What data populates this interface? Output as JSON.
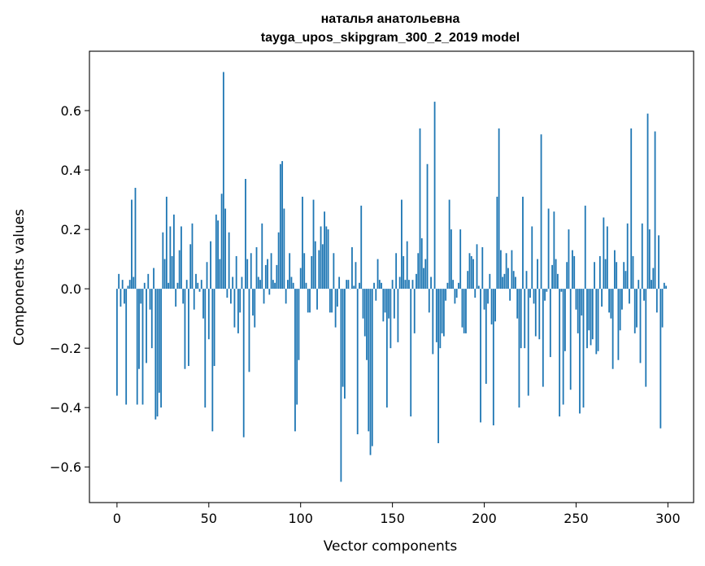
{
  "chart_data": {
    "type": "bar",
    "title_line1": "наталья анатольевна",
    "title_line2": "tayga_upos_skipgram_300_2_2019 model",
    "xlabel": "Vector components",
    "ylabel": "Components values",
    "xlim": [
      -15,
      314
    ],
    "ylim": [
      -0.72,
      0.8
    ],
    "xticks": [
      {
        "value": 0,
        "label": "0"
      },
      {
        "value": 50,
        "label": "50"
      },
      {
        "value": 100,
        "label": "100"
      },
      {
        "value": 150,
        "label": "150"
      },
      {
        "value": 200,
        "label": "200"
      },
      {
        "value": 250,
        "label": "250"
      },
      {
        "value": 300,
        "label": "300"
      }
    ],
    "yticks": [
      {
        "value": -0.6,
        "label": "−0.6"
      },
      {
        "value": -0.4,
        "label": "−0.4"
      },
      {
        "value": -0.2,
        "label": "−0.2"
      },
      {
        "value": 0.0,
        "label": "0.0"
      },
      {
        "value": 0.2,
        "label": "0.2"
      },
      {
        "value": 0.4,
        "label": "0.4"
      },
      {
        "value": 0.6,
        "label": "0.6"
      }
    ],
    "bar_color": "#1f77b4",
    "values": [
      -0.36,
      0.05,
      -0.06,
      0.03,
      -0.05,
      -0.39,
      0.01,
      0.03,
      0.3,
      0.04,
      0.34,
      -0.39,
      -0.27,
      -0.05,
      -0.39,
      0.02,
      -0.25,
      0.05,
      -0.07,
      -0.2,
      0.07,
      -0.44,
      -0.43,
      -0.35,
      -0.4,
      0.19,
      0.1,
      0.31,
      0.02,
      0.21,
      0.11,
      0.25,
      -0.06,
      0.02,
      0.13,
      0.21,
      -0.05,
      -0.27,
      0.03,
      -0.26,
      0.15,
      0.22,
      -0.07,
      0.05,
      0.02,
      -0.01,
      0.03,
      -0.1,
      -0.4,
      0.09,
      -0.17,
      0.16,
      -0.48,
      -0.26,
      0.25,
      0.23,
      0.1,
      0.32,
      0.73,
      0.27,
      -0.03,
      0.19,
      -0.05,
      0.04,
      -0.13,
      0.11,
      -0.15,
      -0.08,
      0.04,
      -0.5,
      0.37,
      0.1,
      -0.28,
      0.12,
      -0.09,
      -0.13,
      0.14,
      0.04,
      0.03,
      0.22,
      -0.05,
      0.08,
      0.1,
      -0.02,
      0.12,
      0.03,
      0.02,
      0.08,
      0.19,
      0.42,
      0.43,
      0.27,
      -0.05,
      0.03,
      0.12,
      0.04,
      0.02,
      -0.48,
      -0.39,
      -0.24,
      0.07,
      0.31,
      0.12,
      0.02,
      -0.08,
      -0.08,
      0.11,
      0.3,
      0.16,
      -0.07,
      0.13,
      0.21,
      0.15,
      0.26,
      0.21,
      0.2,
      -0.08,
      -0.08,
      0.12,
      -0.13,
      -0.06,
      0.04,
      -0.65,
      -0.33,
      -0.37,
      0.03,
      0.03,
      0.0,
      0.14,
      0.01,
      0.09,
      -0.49,
      0.02,
      0.28,
      -0.1,
      -0.16,
      -0.24,
      -0.48,
      -0.56,
      -0.53,
      0.02,
      -0.04,
      0.1,
      0.03,
      0.02,
      -0.11,
      -0.08,
      -0.4,
      -0.1,
      -0.2,
      0.03,
      -0.1,
      0.12,
      -0.18,
      0.04,
      0.3,
      0.11,
      0.03,
      0.16,
      0.03,
      -0.43,
      0.03,
      -0.15,
      0.05,
      0.12,
      0.54,
      0.17,
      0.07,
      0.1,
      0.42,
      -0.08,
      0.04,
      -0.22,
      0.63,
      -0.18,
      -0.52,
      -0.2,
      -0.15,
      -0.16,
      -0.04,
      0.02,
      0.3,
      0.2,
      0.03,
      -0.05,
      -0.03,
      0.02,
      0.2,
      -0.13,
      -0.15,
      -0.15,
      0.06,
      0.12,
      0.11,
      0.1,
      -0.03,
      0.15,
      0.01,
      -0.45,
      0.14,
      -0.07,
      -0.32,
      -0.05,
      0.05,
      -0.12,
      -0.46,
      -0.11,
      0.31,
      0.54,
      0.13,
      0.04,
      0.05,
      0.12,
      0.07,
      -0.04,
      0.13,
      0.06,
      0.04,
      -0.1,
      -0.4,
      -0.2,
      0.31,
      -0.2,
      0.06,
      -0.36,
      -0.03,
      0.21,
      -0.05,
      -0.16,
      0.1,
      -0.17,
      0.52,
      -0.33,
      -0.04,
      -0.01,
      0.27,
      -0.23,
      0.08,
      0.26,
      0.1,
      0.05,
      -0.43,
      -0.01,
      -0.39,
      -0.21,
      0.09,
      0.2,
      -0.34,
      0.13,
      0.11,
      -0.07,
      -0.15,
      -0.42,
      -0.09,
      -0.4,
      0.28,
      -0.2,
      -0.14,
      -0.19,
      -0.17,
      0.09,
      -0.22,
      -0.21,
      0.11,
      -0.06,
      0.24,
      0.1,
      0.21,
      -0.08,
      -0.1,
      -0.27,
      0.13,
      0.09,
      -0.24,
      -0.14,
      -0.07,
      0.09,
      0.06,
      0.22,
      -0.05,
      0.54,
      0.11,
      -0.15,
      -0.13,
      0.03,
      -0.25,
      0.22,
      -0.04,
      -0.33,
      0.59,
      0.2,
      0.03,
      0.07,
      0.53,
      -0.08,
      0.18,
      -0.47,
      -0.13,
      0.02,
      0.01
    ]
  }
}
